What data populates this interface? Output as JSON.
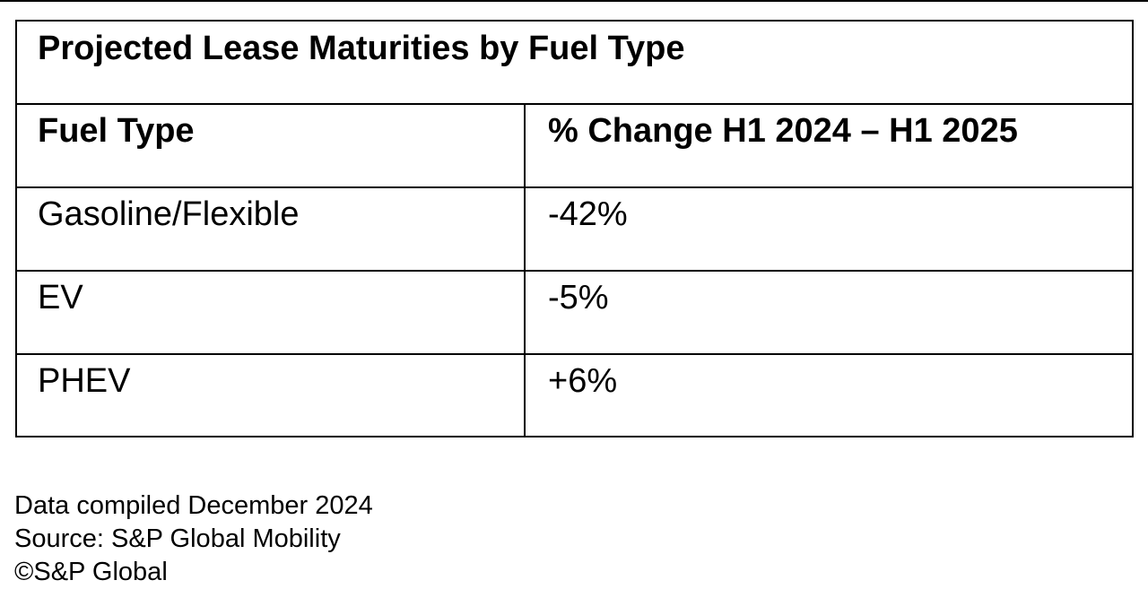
{
  "chart_data": {
    "type": "table",
    "title": "Projected Lease Maturities by Fuel Type",
    "columns": [
      "Fuel Type",
      "% Change H1 2024 – H1 2025"
    ],
    "rows": [
      {
        "fuel_type": "Gasoline/Flexible",
        "change_label": "-42%",
        "change_value": -42
      },
      {
        "fuel_type": "EV",
        "change_label": "-5%",
        "change_value": -5
      },
      {
        "fuel_type": "PHEV",
        "change_label": "+6%",
        "change_value": 6
      }
    ]
  },
  "footer": {
    "compiled": "Data compiled December 2024",
    "source": "Source: S&P Global Mobility",
    "copyright": "©S&P Global"
  }
}
